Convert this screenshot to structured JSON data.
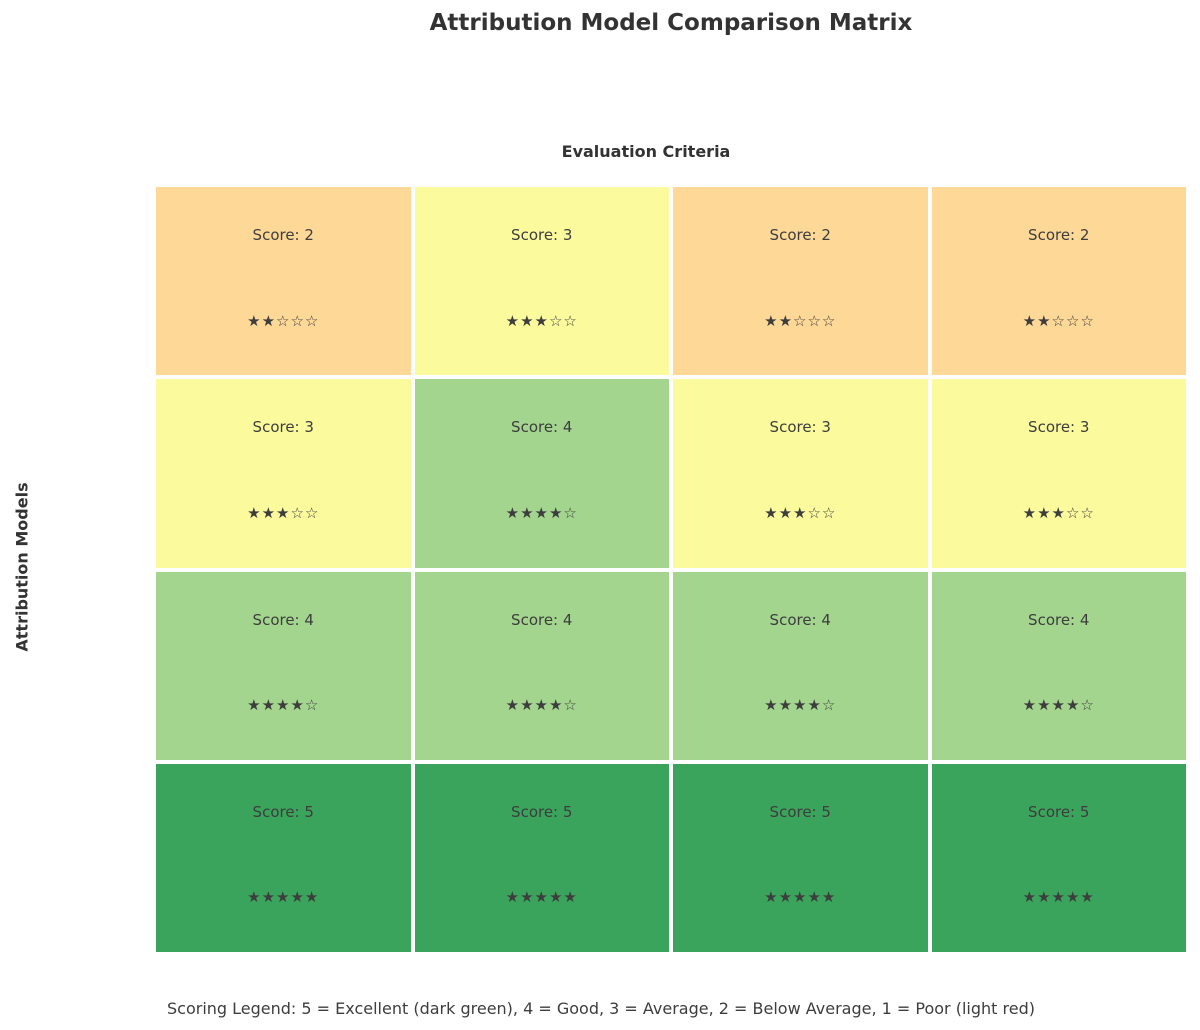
{
  "title": "Attribution Model Comparison Matrix",
  "axes": {
    "x_label": "Evaluation Criteria",
    "y_label": "Attribution Models"
  },
  "legend_text": "Scoring Legend: 5 = Excellent (dark green), 4 = Good, 3 = Average, 2 = Below Average, 1 = Poor (light red)",
  "score_colors": {
    "2": "#FDD896",
    "3": "#FBFB9E",
    "4": "#A3D58F",
    "5": "#3BA45C"
  },
  "cells": [
    {
      "row": 0,
      "col": 0,
      "score": 2,
      "label": "Score: 2",
      "stars": "★★☆☆☆"
    },
    {
      "row": 0,
      "col": 1,
      "score": 3,
      "label": "Score: 3",
      "stars": "★★★☆☆"
    },
    {
      "row": 0,
      "col": 2,
      "score": 2,
      "label": "Score: 2",
      "stars": "★★☆☆☆"
    },
    {
      "row": 0,
      "col": 3,
      "score": 2,
      "label": "Score: 2",
      "stars": "★★☆☆☆"
    },
    {
      "row": 1,
      "col": 0,
      "score": 3,
      "label": "Score: 3",
      "stars": "★★★☆☆"
    },
    {
      "row": 1,
      "col": 1,
      "score": 4,
      "label": "Score: 4",
      "stars": "★★★★☆"
    },
    {
      "row": 1,
      "col": 2,
      "score": 3,
      "label": "Score: 3",
      "stars": "★★★☆☆"
    },
    {
      "row": 1,
      "col": 3,
      "score": 3,
      "label": "Score: 3",
      "stars": "★★★☆☆"
    },
    {
      "row": 2,
      "col": 0,
      "score": 4,
      "label": "Score: 4",
      "stars": "★★★★☆"
    },
    {
      "row": 2,
      "col": 1,
      "score": 4,
      "label": "Score: 4",
      "stars": "★★★★☆"
    },
    {
      "row": 2,
      "col": 2,
      "score": 4,
      "label": "Score: 4",
      "stars": "★★★★☆"
    },
    {
      "row": 2,
      "col": 3,
      "score": 4,
      "label": "Score: 4",
      "stars": "★★★★☆"
    },
    {
      "row": 3,
      "col": 0,
      "score": 5,
      "label": "Score: 5",
      "stars": "★★★★★"
    },
    {
      "row": 3,
      "col": 1,
      "score": 5,
      "label": "Score: 5",
      "stars": "★★★★★"
    },
    {
      "row": 3,
      "col": 2,
      "score": 5,
      "label": "Score: 5",
      "stars": "★★★★★"
    },
    {
      "row": 3,
      "col": 3,
      "score": 5,
      "label": "Score: 5",
      "stars": "★★★★★"
    }
  ],
  "chart_data": {
    "type": "heatmap",
    "title": "Attribution Model Comparison Matrix",
    "xlabel": "Evaluation Criteria",
    "ylabel": "Attribution Models",
    "rows": 4,
    "cols": 4,
    "values": [
      [
        2,
        3,
        2,
        2
      ],
      [
        3,
        4,
        3,
        3
      ],
      [
        4,
        4,
        4,
        4
      ],
      [
        5,
        5,
        5,
        5
      ]
    ],
    "cell_labels": [
      [
        "Score: 2",
        "Score: 3",
        "Score: 2",
        "Score: 2"
      ],
      [
        "Score: 3",
        "Score: 4",
        "Score: 3",
        "Score: 3"
      ],
      [
        "Score: 4",
        "Score: 4",
        "Score: 4",
        "Score: 4"
      ],
      [
        "Score: 5",
        "Score: 5",
        "Score: 5",
        "Score: 5"
      ]
    ],
    "score_scale": {
      "5": "Excellent (dark green)",
      "4": "Good",
      "3": "Average",
      "2": "Below Average",
      "1": "Poor (light red)"
    },
    "value_colors": {
      "2": "#FDD896",
      "3": "#FBFB9E",
      "4": "#A3D58F",
      "5": "#3BA45C"
    },
    "legend_position": "bottom",
    "grid": false
  }
}
